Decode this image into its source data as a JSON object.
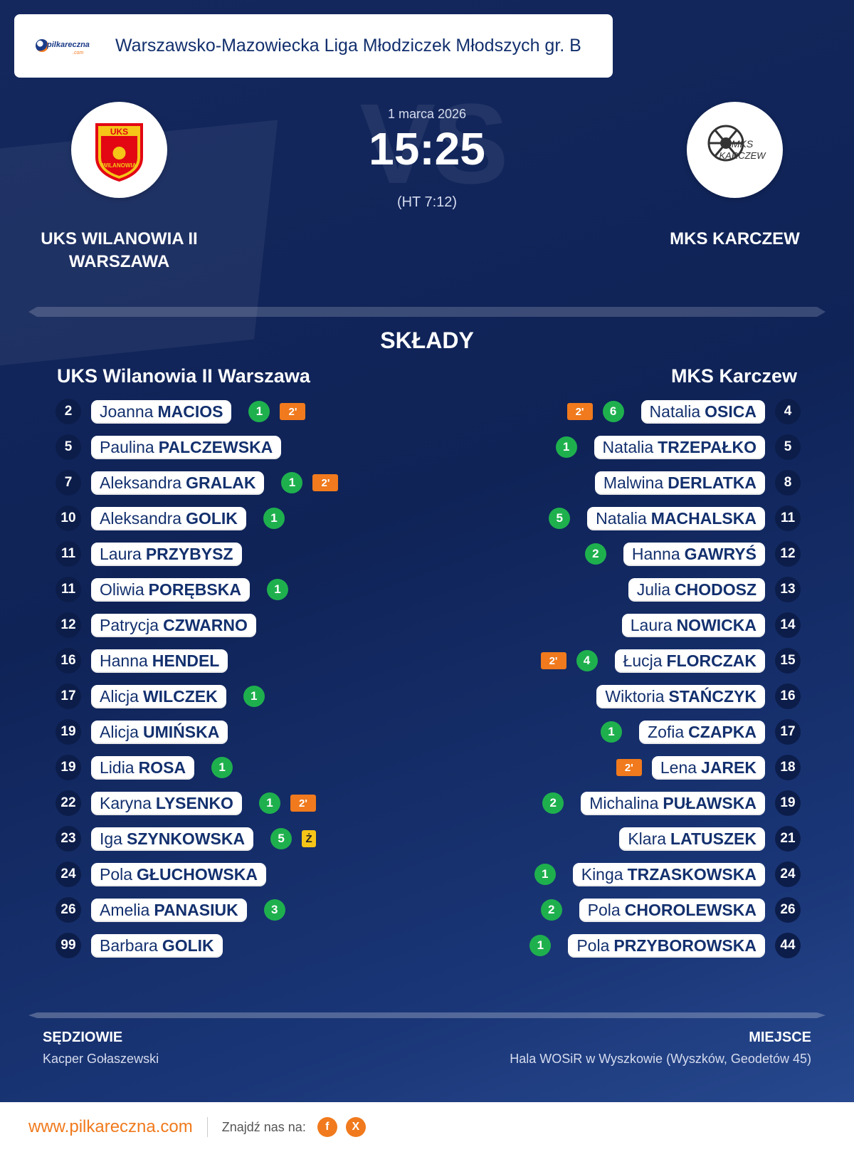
{
  "header": {
    "logo_text": "pilkareczna",
    "logo_sub": ".com",
    "league": "Warszawsko-Mazowiecka Liga Młodziczek Młodszych gr. B"
  },
  "match": {
    "date": "1 marca 2026",
    "score": "15:25",
    "halftime": "(HT 7:12)",
    "vs": "VS"
  },
  "home": {
    "name": "UKS WILANOWIA II WARSZAWA",
    "column_title": "UKS Wilanowia II Warszawa",
    "logo_text": "UKS",
    "logo_sub": "WILANOWIA",
    "players": [
      {
        "number": "2",
        "first": "Joanna",
        "last": "MACIOS",
        "goals": "1",
        "suspension": "2'",
        "card": ""
      },
      {
        "number": "5",
        "first": "Paulina",
        "last": "PALCZEWSKA",
        "goals": "",
        "suspension": "",
        "card": ""
      },
      {
        "number": "7",
        "first": "Aleksandra",
        "last": "GRALAK",
        "goals": "1",
        "suspension": "2'",
        "card": ""
      },
      {
        "number": "10",
        "first": "Aleksandra",
        "last": "GOLIK",
        "goals": "1",
        "suspension": "",
        "card": ""
      },
      {
        "number": "11",
        "first": "Laura",
        "last": "PRZYBYSZ",
        "goals": "",
        "suspension": "",
        "card": ""
      },
      {
        "number": "11",
        "first": "Oliwia",
        "last": "PORĘBSKA",
        "goals": "1",
        "suspension": "",
        "card": ""
      },
      {
        "number": "12",
        "first": "Patrycja",
        "last": "CZWARNO",
        "goals": "",
        "suspension": "",
        "card": ""
      },
      {
        "number": "16",
        "first": "Hanna",
        "last": "HENDEL",
        "goals": "",
        "suspension": "",
        "card": ""
      },
      {
        "number": "17",
        "first": "Alicja",
        "last": "WILCZEK",
        "goals": "1",
        "suspension": "",
        "card": ""
      },
      {
        "number": "19",
        "first": "Alicja",
        "last": "UMIŃSKA",
        "goals": "",
        "suspension": "",
        "card": ""
      },
      {
        "number": "19",
        "first": "Lidia",
        "last": "ROSA",
        "goals": "1",
        "suspension": "",
        "card": ""
      },
      {
        "number": "22",
        "first": "Karyna",
        "last": "LYSENKO",
        "goals": "1",
        "suspension": "2'",
        "card": ""
      },
      {
        "number": "23",
        "first": "Iga",
        "last": "SZYNKOWSKA",
        "goals": "5",
        "suspension": "",
        "card": "Ż"
      },
      {
        "number": "24",
        "first": "Pola",
        "last": "GŁUCHOWSKA",
        "goals": "",
        "suspension": "",
        "card": ""
      },
      {
        "number": "26",
        "first": "Amelia",
        "last": "PANASIUK",
        "goals": "3",
        "suspension": "",
        "card": ""
      },
      {
        "number": "99",
        "first": "Barbara",
        "last": "GOLIK",
        "goals": "",
        "suspension": "",
        "card": ""
      }
    ]
  },
  "away": {
    "name": "MKS KARCZEW",
    "column_title": "MKS Karczew",
    "logo_text": "MKS",
    "logo_sub": "KARCZEW",
    "players": [
      {
        "number": "4",
        "first": "Natalia",
        "last": "OSICA",
        "goals": "6",
        "suspension": "2'",
        "card": ""
      },
      {
        "number": "5",
        "first": "Natalia",
        "last": "TRZEPAŁKO",
        "goals": "1",
        "suspension": "",
        "card": ""
      },
      {
        "number": "8",
        "first": "Malwina",
        "last": "DERLATKA",
        "goals": "",
        "suspension": "",
        "card": ""
      },
      {
        "number": "11",
        "first": "Natalia",
        "last": "MACHALSKA",
        "goals": "5",
        "suspension": "",
        "card": ""
      },
      {
        "number": "12",
        "first": "Hanna",
        "last": "GAWRYŚ",
        "goals": "2",
        "suspension": "",
        "card": ""
      },
      {
        "number": "13",
        "first": "Julia",
        "last": "CHODOSZ",
        "goals": "",
        "suspension": "",
        "card": ""
      },
      {
        "number": "14",
        "first": "Laura",
        "last": "NOWICKA",
        "goals": "",
        "suspension": "",
        "card": ""
      },
      {
        "number": "15",
        "first": "Łucja",
        "last": "FLORCZAK",
        "goals": "4",
        "suspension": "2'",
        "card": ""
      },
      {
        "number": "16",
        "first": "Wiktoria",
        "last": "STAŃCZYK",
        "goals": "",
        "suspension": "",
        "card": ""
      },
      {
        "number": "17",
        "first": "Zofia",
        "last": "CZAPKA",
        "goals": "1",
        "suspension": "",
        "card": ""
      },
      {
        "number": "18",
        "first": "Lena",
        "last": "JAREK",
        "goals": "",
        "suspension": "2'",
        "card": ""
      },
      {
        "number": "19",
        "first": "Michalina",
        "last": "PUŁAWSKA",
        "goals": "2",
        "suspension": "",
        "card": ""
      },
      {
        "number": "21",
        "first": "Klara",
        "last": "LATUSZEK",
        "goals": "",
        "suspension": "",
        "card": ""
      },
      {
        "number": "24",
        "first": "Kinga",
        "last": "TRZASKOWSKA",
        "goals": "1",
        "suspension": "",
        "card": ""
      },
      {
        "number": "26",
        "first": "Pola",
        "last": "CHOROLEWSKA",
        "goals": "2",
        "suspension": "",
        "card": ""
      },
      {
        "number": "44",
        "first": "Pola",
        "last": "PRZYBOROWSKA",
        "goals": "1",
        "suspension": "",
        "card": ""
      }
    ]
  },
  "section_title": "SKŁADY",
  "referees": {
    "label": "SĘDZIOWIE",
    "value": "Kacper Gołaszewski"
  },
  "venue": {
    "label": "MIEJSCE",
    "value": "Hala WOSiR w Wyszkowie (Wyszków, Geodetów 45)"
  },
  "footer": {
    "url": "www.pilkareczna.com",
    "find_us": "Znajdź nas na:",
    "facebook_icon": "f",
    "x_icon": "X"
  },
  "colors": {
    "background": "#14285e",
    "goal_badge": "#1fb04e",
    "suspension_badge": "#f07a1d",
    "yellow_card": "#f5c518",
    "number_badge": "#0c1d4a",
    "accent": "#f07a1d"
  },
  "icons": {
    "home_logo": "crest-icon",
    "away_logo": "handball-icon",
    "facebook": "facebook-icon",
    "x": "x-icon"
  }
}
